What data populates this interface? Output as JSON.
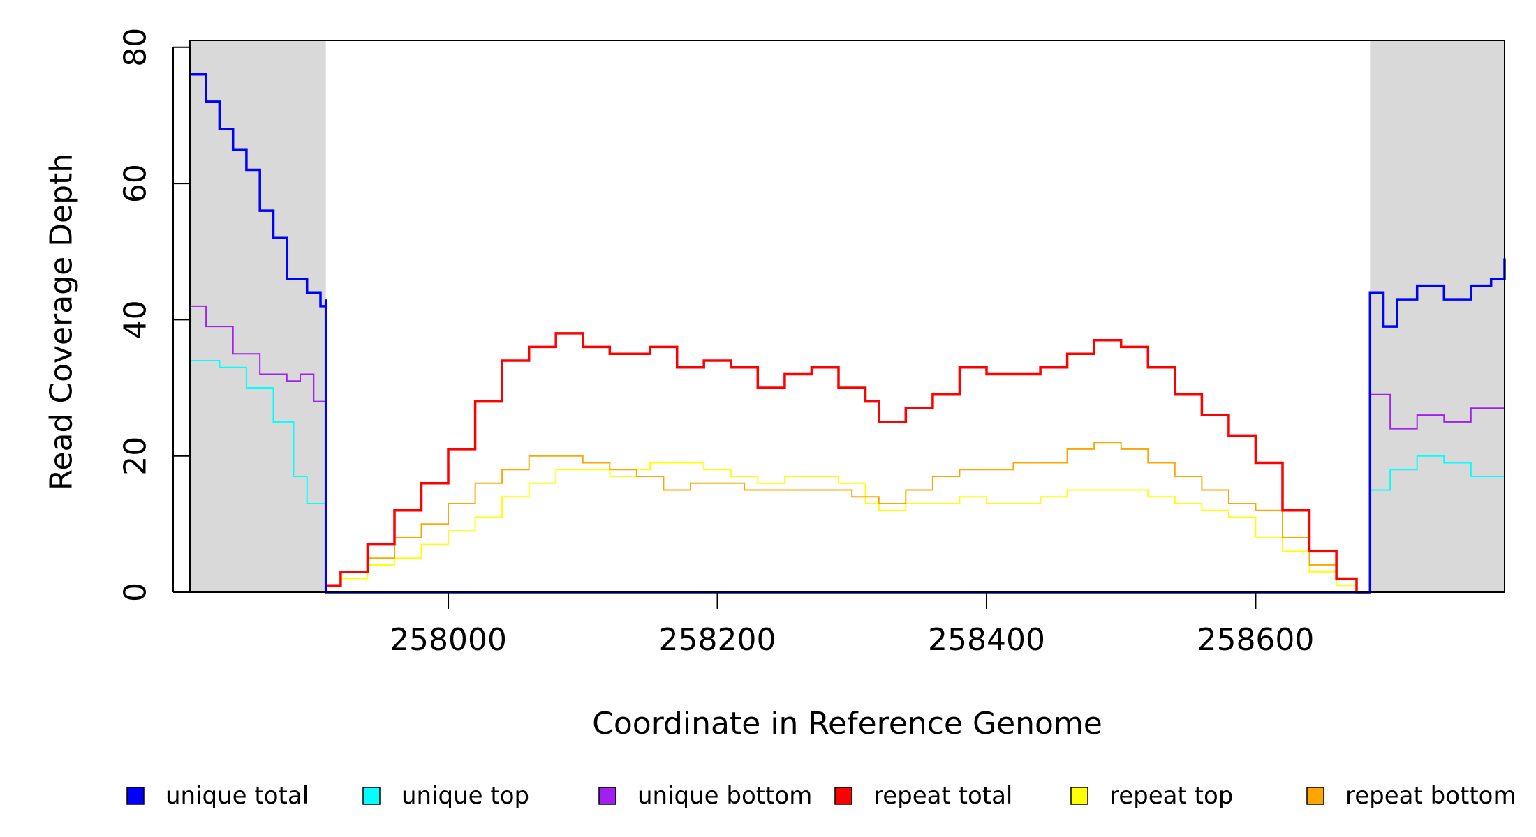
{
  "chart_data": {
    "type": "line",
    "xlabel": "Coordinate in Reference Genome",
    "ylabel": "Read Coverage Depth",
    "xlim": [
      257808,
      258785
    ],
    "ylim": [
      0,
      81
    ],
    "x_ticks": [
      258000,
      258200,
      258400,
      258600
    ],
    "x_tick_labels": [
      "258000",
      "258200",
      "258400",
      "258600"
    ],
    "y_ticks": [
      0,
      20,
      40,
      60,
      80
    ],
    "y_tick_labels": [
      "0",
      "20",
      "40",
      "60",
      "80"
    ],
    "grid": false,
    "shaded_regions": [
      {
        "x": [
          257808,
          257909
        ],
        "color": "#d9d9d9"
      },
      {
        "x": [
          258685,
          258785
        ],
        "color": "#d9d9d9"
      }
    ],
    "legend_position": "bottom",
    "legend": [
      {
        "label": "unique total",
        "color": "#0000ff"
      },
      {
        "label": "unique top",
        "color": "#00ffff"
      },
      {
        "label": "unique bottom",
        "color": "#a020f0"
      },
      {
        "label": "repeat total",
        "color": "#ff0000"
      },
      {
        "label": "repeat top",
        "color": "#ffff00"
      },
      {
        "label": "repeat bottom",
        "color": "#ffa500"
      }
    ],
    "series": [
      {
        "name": "repeat top",
        "color": "#ffff00",
        "points": [
          [
            257909,
            0
          ],
          [
            257909,
            1
          ],
          [
            257920,
            2
          ],
          [
            257940,
            4
          ],
          [
            257960,
            5
          ],
          [
            257980,
            7
          ],
          [
            258000,
            9
          ],
          [
            258020,
            11
          ],
          [
            258040,
            14
          ],
          [
            258060,
            16
          ],
          [
            258080,
            18
          ],
          [
            258100,
            18
          ],
          [
            258120,
            17
          ],
          [
            258140,
            18
          ],
          [
            258150,
            19
          ],
          [
            258170,
            19
          ],
          [
            258190,
            18
          ],
          [
            258210,
            17
          ],
          [
            258230,
            16
          ],
          [
            258250,
            17
          ],
          [
            258270,
            17
          ],
          [
            258290,
            16
          ],
          [
            258310,
            13
          ],
          [
            258320,
            12
          ],
          [
            258340,
            13
          ],
          [
            258360,
            13
          ],
          [
            258380,
            14
          ],
          [
            258400,
            13
          ],
          [
            258420,
            13
          ],
          [
            258440,
            14
          ],
          [
            258460,
            15
          ],
          [
            258480,
            15
          ],
          [
            258500,
            15
          ],
          [
            258520,
            14
          ],
          [
            258540,
            13
          ],
          [
            258560,
            12
          ],
          [
            258580,
            11
          ],
          [
            258600,
            8
          ],
          [
            258620,
            6
          ],
          [
            258640,
            3
          ],
          [
            258660,
            1
          ],
          [
            258675,
            0
          ],
          [
            258685,
            0
          ]
        ]
      },
      {
        "name": "repeat bottom",
        "color": "#ffa500",
        "points": [
          [
            257909,
            0
          ],
          [
            257909,
            1
          ],
          [
            257920,
            3
          ],
          [
            257940,
            5
          ],
          [
            257960,
            8
          ],
          [
            257980,
            10
          ],
          [
            258000,
            13
          ],
          [
            258020,
            16
          ],
          [
            258040,
            18
          ],
          [
            258060,
            20
          ],
          [
            258080,
            20
          ],
          [
            258100,
            19
          ],
          [
            258120,
            18
          ],
          [
            258140,
            17
          ],
          [
            258160,
            15
          ],
          [
            258180,
            16
          ],
          [
            258200,
            16
          ],
          [
            258220,
            15
          ],
          [
            258240,
            15
          ],
          [
            258260,
            15
          ],
          [
            258280,
            15
          ],
          [
            258300,
            14
          ],
          [
            258320,
            13
          ],
          [
            258340,
            15
          ],
          [
            258360,
            17
          ],
          [
            258380,
            18
          ],
          [
            258400,
            18
          ],
          [
            258420,
            19
          ],
          [
            258440,
            19
          ],
          [
            258460,
            21
          ],
          [
            258480,
            22
          ],
          [
            258500,
            21
          ],
          [
            258520,
            19
          ],
          [
            258540,
            17
          ],
          [
            258560,
            15
          ],
          [
            258580,
            13
          ],
          [
            258600,
            12
          ],
          [
            258620,
            8
          ],
          [
            258640,
            4
          ],
          [
            258660,
            2
          ],
          [
            258675,
            0
          ],
          [
            258685,
            0
          ]
        ]
      },
      {
        "name": "repeat total",
        "color": "#ff0000",
        "points": [
          [
            257909,
            0
          ],
          [
            257909,
            1
          ],
          [
            257920,
            3
          ],
          [
            257940,
            7
          ],
          [
            257960,
            12
          ],
          [
            257980,
            16
          ],
          [
            258000,
            21
          ],
          [
            258020,
            28
          ],
          [
            258040,
            34
          ],
          [
            258060,
            36
          ],
          [
            258080,
            38
          ],
          [
            258100,
            36
          ],
          [
            258120,
            35
          ],
          [
            258140,
            35
          ],
          [
            258150,
            36
          ],
          [
            258170,
            33
          ],
          [
            258190,
            34
          ],
          [
            258210,
            33
          ],
          [
            258230,
            30
          ],
          [
            258250,
            32
          ],
          [
            258270,
            33
          ],
          [
            258290,
            30
          ],
          [
            258310,
            28
          ],
          [
            258320,
            25
          ],
          [
            258340,
            27
          ],
          [
            258360,
            29
          ],
          [
            258380,
            33
          ],
          [
            258400,
            32
          ],
          [
            258420,
            32
          ],
          [
            258440,
            33
          ],
          [
            258460,
            35
          ],
          [
            258480,
            37
          ],
          [
            258500,
            36
          ],
          [
            258520,
            33
          ],
          [
            258540,
            29
          ],
          [
            258560,
            26
          ],
          [
            258580,
            23
          ],
          [
            258600,
            19
          ],
          [
            258620,
            12
          ],
          [
            258640,
            6
          ],
          [
            258660,
            2
          ],
          [
            258675,
            0
          ],
          [
            258685,
            0
          ]
        ]
      },
      {
        "name": "unique top",
        "color": "#00ffff",
        "points": [
          [
            257808,
            34
          ],
          [
            257830,
            33
          ],
          [
            257850,
            30
          ],
          [
            257870,
            25
          ],
          [
            257885,
            17
          ],
          [
            257895,
            13
          ],
          [
            257909,
            15
          ],
          [
            257909,
            0
          ],
          [
            258685,
            0
          ],
          [
            258685,
            15
          ],
          [
            258700,
            18
          ],
          [
            258720,
            20
          ],
          [
            258740,
            19
          ],
          [
            258760,
            17
          ],
          [
            258785,
            18
          ]
        ]
      },
      {
        "name": "unique bottom",
        "color": "#a020f0",
        "points": [
          [
            257808,
            42
          ],
          [
            257820,
            39
          ],
          [
            257840,
            35
          ],
          [
            257860,
            32
          ],
          [
            257880,
            31
          ],
          [
            257890,
            32
          ],
          [
            257900,
            28
          ],
          [
            257909,
            28
          ],
          [
            257909,
            0
          ],
          [
            258685,
            0
          ],
          [
            258685,
            29
          ],
          [
            258700,
            24
          ],
          [
            258720,
            26
          ],
          [
            258740,
            25
          ],
          [
            258760,
            27
          ],
          [
            258785,
            30
          ]
        ]
      },
      {
        "name": "unique total",
        "color": "#0000ff",
        "points": [
          [
            257808,
            76
          ],
          [
            257820,
            72
          ],
          [
            257830,
            68
          ],
          [
            257840,
            65
          ],
          [
            257850,
            62
          ],
          [
            257860,
            56
          ],
          [
            257870,
            52
          ],
          [
            257880,
            46
          ],
          [
            257895,
            44
          ],
          [
            257905,
            42
          ],
          [
            257909,
            43
          ],
          [
            257909,
            0
          ],
          [
            258685,
            0
          ],
          [
            258685,
            44
          ],
          [
            258695,
            39
          ],
          [
            258705,
            43
          ],
          [
            258720,
            45
          ],
          [
            258740,
            43
          ],
          [
            258760,
            45
          ],
          [
            258775,
            46
          ],
          [
            258785,
            49
          ]
        ]
      }
    ]
  }
}
